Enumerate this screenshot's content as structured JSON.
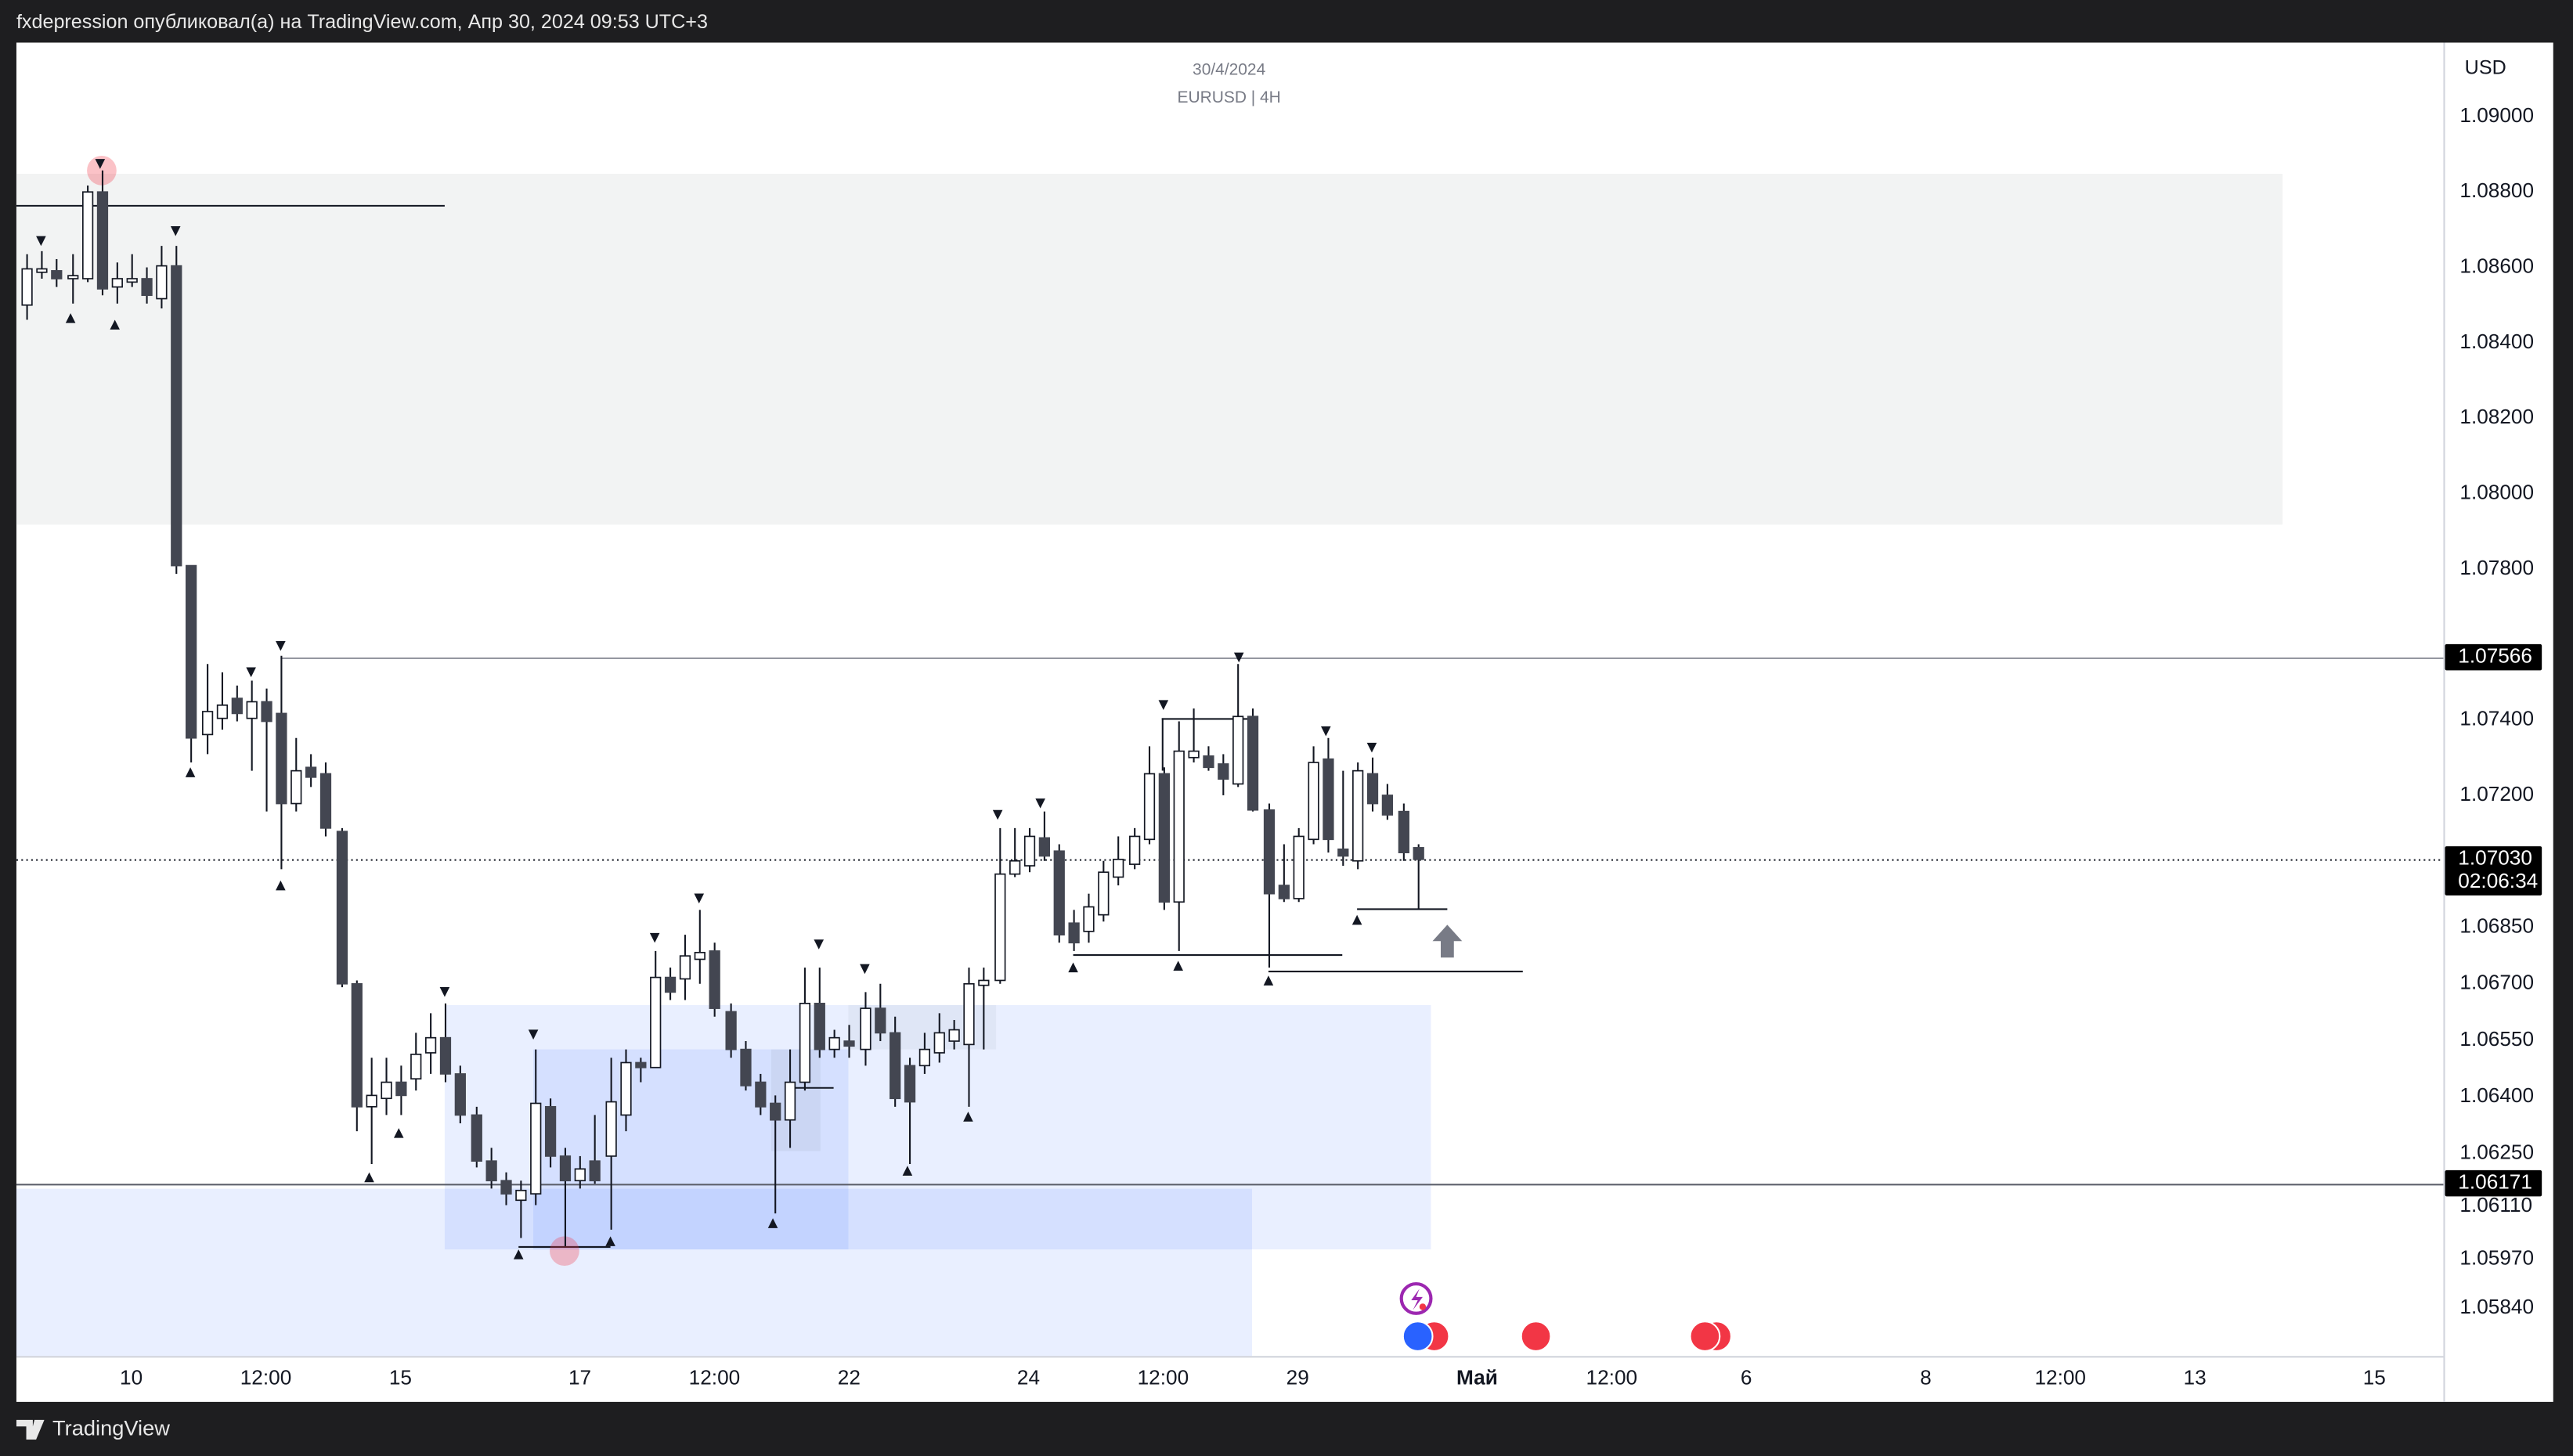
{
  "header": {
    "text": "fxdepression опубликовал(а) на TradingView.com, Апр 30, 2024 09:53 UTC+3"
  },
  "footer": {
    "brand": "TradingView"
  },
  "chart_data": {
    "type": "candlestick",
    "subtitle": "30/4/2024",
    "title": "EURUSD | 4H",
    "currency": "USD",
    "ylim": [
      1.05713,
      1.09196
    ],
    "yticks": [
      {
        "value": 1.09,
        "label": "1.09000"
      },
      {
        "value": 1.088,
        "label": "1.08800"
      },
      {
        "value": 1.086,
        "label": "1.08600"
      },
      {
        "value": 1.084,
        "label": "1.08400"
      },
      {
        "value": 1.082,
        "label": "1.08200"
      },
      {
        "value": 1.08,
        "label": "1.08000"
      },
      {
        "value": 1.078,
        "label": "1.07800"
      },
      {
        "value": 1.074,
        "label": "1.07400"
      },
      {
        "value": 1.072,
        "label": "1.07200"
      },
      {
        "value": 1.0685,
        "label": "1.06850"
      },
      {
        "value": 1.067,
        "label": "1.06700"
      },
      {
        "value": 1.0655,
        "label": "1.06550"
      },
      {
        "value": 1.064,
        "label": "1.06400"
      },
      {
        "value": 1.0625,
        "label": "1.06250"
      },
      {
        "value": 1.0611,
        "label": "1.06110"
      },
      {
        "value": 1.0597,
        "label": "1.05970"
      },
      {
        "value": 1.0584,
        "label": "1.05840"
      }
    ],
    "grid": false,
    "price_lines": [
      1.07566,
      {
        "value": 1.0703,
        "label": "1.07030"
      },
      1.06171
    ],
    "countdown": "02:06:34",
    "categories": [
      null,
      null,
      null,
      null,
      null,
      null,
      null,
      "10",
      null,
      null,
      null,
      null,
      null,
      null,
      null,
      null,
      "12:00",
      null,
      null,
      null,
      null,
      null,
      null,
      null,
      null,
      "15",
      null,
      null,
      null,
      null,
      null,
      null,
      null,
      null,
      null,
      null,
      null,
      "17",
      null,
      null,
      null,
      null,
      null,
      null,
      null,
      null,
      "12:00",
      null,
      null,
      null,
      null,
      null,
      null,
      null,
      null,
      "22",
      null,
      null,
      null,
      null,
      null,
      null,
      null,
      null,
      null,
      null,
      null,
      "24",
      null,
      null,
      null,
      null,
      null,
      null,
      null,
      null,
      "12:00",
      null,
      null,
      null,
      null,
      null,
      null,
      null,
      null,
      "29",
      null,
      null,
      null,
      null,
      null,
      null,
      null,
      null,
      null,
      null,
      null,
      "Май",
      null,
      null,
      null,
      null,
      null,
      null,
      null,
      null,
      "12:00",
      null,
      null,
      null,
      null,
      null,
      null,
      null,
      null,
      "6",
      null,
      null,
      null,
      null,
      null,
      null,
      null,
      null,
      null,
      null,
      null,
      "8",
      null,
      null,
      null,
      null,
      null,
      null,
      null,
      null,
      "12:00",
      null,
      null,
      null,
      null,
      null,
      null,
      null,
      null,
      "13",
      null,
      null,
      null,
      null,
      null,
      null,
      null,
      null,
      null,
      null,
      null,
      "15",
      null,
      null,
      null,
      null
    ],
    "values": [
      [
        1.085,
        1.08635,
        1.08461,
        1.08596
      ],
      [
        1.08587,
        1.08643,
        1.0857,
        1.08596
      ],
      [
        1.08591,
        1.08622,
        1.08548,
        1.0857
      ],
      [
        1.0857,
        1.08635,
        1.08504,
        1.08578
      ],
      [
        1.0857,
        1.08817,
        1.08561,
        1.088
      ],
      [
        1.088,
        1.08857,
        1.08526,
        1.08543
      ],
      [
        1.08548,
        1.08613,
        1.08504,
        1.0857
      ],
      [
        1.08561,
        1.08635,
        1.08548,
        1.0857
      ],
      [
        1.0857,
        1.086,
        1.08504,
        1.08526
      ],
      [
        1.08517,
        1.08657,
        1.08491,
        1.08604
      ],
      [
        1.08604,
        1.08657,
        1.07787,
        1.07809
      ],
      [
        1.07809,
        1.07809,
        1.07287,
        1.07352
      ],
      [
        1.07361,
        1.07548,
        1.07309,
        1.07422
      ],
      [
        1.07404,
        1.07526,
        1.07374,
        1.07439
      ],
      [
        1.07457,
        1.07491,
        1.07396,
        1.07417
      ],
      [
        1.07404,
        1.07504,
        1.07265,
        1.07448
      ],
      [
        1.07448,
        1.07483,
        1.07157,
        1.07396
      ],
      [
        1.07417,
        1.0757,
        1.07004,
        1.07178
      ],
      [
        1.07178,
        1.07352,
        1.07157,
        1.07265
      ],
      [
        1.07274,
        1.07309,
        1.07222,
        1.07248
      ],
      [
        1.07257,
        1.07287,
        1.07091,
        1.07113
      ],
      [
        1.07104,
        1.07113,
        1.06691,
        1.067
      ],
      [
        1.067,
        1.06709,
        1.06309,
        1.06374
      ],
      [
        1.06374,
        1.06504,
        1.06222,
        1.06404
      ],
      [
        1.06396,
        1.06504,
        1.06352,
        1.06439
      ],
      [
        1.06439,
        1.06483,
        1.06352,
        1.06404
      ],
      [
        1.06448,
        1.0657,
        1.06417,
        1.06513
      ],
      [
        1.06517,
        1.06622,
        1.06461,
        1.06557
      ],
      [
        1.06557,
        1.06648,
        1.06439,
        1.06461
      ],
      [
        1.06461,
        1.06483,
        1.0633,
        1.06352
      ],
      [
        1.06352,
        1.06374,
        1.06213,
        1.0623
      ],
      [
        1.0623,
        1.06265,
        1.06157,
        1.06178
      ],
      [
        1.06178,
        1.062,
        1.06113,
        1.06143
      ],
      [
        1.06126,
        1.06178,
        1.06026,
        1.06152
      ],
      [
        1.06143,
        1.06526,
        1.06113,
        1.06383
      ],
      [
        1.06374,
        1.06396,
        1.06213,
        1.06243
      ],
      [
        1.06243,
        1.06265,
        1.06004,
        1.06178
      ],
      [
        1.06178,
        1.06243,
        1.06157,
        1.06209
      ],
      [
        1.0623,
        1.06352,
        1.0617,
        1.06178
      ],
      [
        1.06243,
        1.06504,
        1.06048,
        1.06387
      ],
      [
        1.06352,
        1.06526,
        1.06309,
        1.06491
      ],
      [
        1.06491,
        1.06504,
        1.06439,
        1.06478
      ],
      [
        1.06478,
        1.06787,
        1.06478,
        1.06717
      ],
      [
        1.06717,
        1.06743,
        1.06657,
        1.06678
      ],
      [
        1.06713,
        1.0683,
        1.06657,
        1.06774
      ],
      [
        1.06765,
        1.06896,
        1.067,
        1.06783
      ],
      [
        1.06787,
        1.06809,
        1.06613,
        1.06635
      ],
      [
        1.06626,
        1.06648,
        1.06504,
        1.06526
      ],
      [
        1.06526,
        1.06548,
        1.06417,
        1.0643
      ],
      [
        1.06439,
        1.06461,
        1.06352,
        1.06374
      ],
      [
        1.06383,
        1.06404,
        1.06091,
        1.06339
      ],
      [
        1.06339,
        1.06526,
        1.06265,
        1.06439
      ],
      [
        1.06439,
        1.06743,
        1.06417,
        1.06648
      ],
      [
        1.06648,
        1.06743,
        1.06504,
        1.06526
      ],
      [
        1.06526,
        1.06578,
        1.06504,
        1.06557
      ],
      [
        1.06548,
        1.06591,
        1.06504,
        1.06535
      ],
      [
        1.06526,
        1.06678,
        1.06483,
        1.06635
      ],
      [
        1.06635,
        1.067,
        1.06548,
        1.0657
      ],
      [
        1.0657,
        1.06613,
        1.06374,
        1.06396
      ],
      [
        1.06483,
        1.06504,
        1.06222,
        1.06387
      ],
      [
        1.06483,
        1.0657,
        1.06461,
        1.06526
      ],
      [
        1.06517,
        1.06622,
        1.06491,
        1.0657
      ],
      [
        1.06548,
        1.06604,
        1.06526,
        1.06578
      ],
      [
        1.06539,
        1.06743,
        1.06374,
        1.067
      ],
      [
        1.06696,
        1.06743,
        1.06526,
        1.06709
      ],
      [
        1.06709,
        1.07113,
        1.067,
        1.06991
      ],
      [
        1.06991,
        1.07113,
        1.06983,
        1.07026
      ],
      [
        1.07013,
        1.07113,
        1.06996,
        1.07091
      ],
      [
        1.07087,
        1.07157,
        1.07026,
        1.07039
      ],
      [
        1.07052,
        1.0707,
        1.06809,
        1.0683
      ],
      [
        1.06861,
        1.06896,
        1.06787,
        1.06809
      ],
      [
        1.06839,
        1.06939,
        1.06809,
        1.06904
      ],
      [
        1.06883,
        1.07026,
        1.06865,
        1.06996
      ],
      [
        1.06983,
        1.07091,
        1.06961,
        1.0703
      ],
      [
        1.07017,
        1.07113,
        1.07004,
        1.07091
      ],
      [
        1.07083,
        1.0733,
        1.0707,
        1.07257
      ],
      [
        1.07257,
        1.07274,
        1.06896,
        1.06917
      ],
      [
        1.06917,
        1.07396,
        1.06787,
        1.07317
      ],
      [
        1.073,
        1.0743,
        1.07287,
        1.07317
      ],
      [
        1.07304,
        1.0733,
        1.07265,
        1.07274
      ],
      [
        1.07283,
        1.07309,
        1.072,
        1.07243
      ],
      [
        1.0723,
        1.07548,
        1.07222,
        1.07409
      ],
      [
        1.07409,
        1.0743,
        1.07157,
        1.07161
      ],
      [
        1.07161,
        1.07178,
        1.06743,
        1.06939
      ],
      [
        1.06961,
        1.0707,
        1.06917,
        1.06926
      ],
      [
        1.06926,
        1.07113,
        1.06917,
        1.07091
      ],
      [
        1.07083,
        1.0733,
        1.0707,
        1.07287
      ],
      [
        1.07296,
        1.07352,
        1.07048,
        1.07083
      ],
      [
        1.07057,
        1.07265,
        1.07013,
        1.07039
      ],
      [
        1.07026,
        1.07287,
        1.07004,
        1.07265
      ],
      [
        1.07257,
        1.073,
        1.07157,
        1.07178
      ],
      [
        1.072,
        1.0723,
        1.07135,
        1.07148
      ],
      [
        1.07157,
        1.07178,
        1.07026,
        1.07048
      ],
      [
        1.07061,
        1.0707,
        1.06896,
        1.0703
      ],
      null,
      null,
      null,
      null,
      null,
      null,
      null,
      null,
      null,
      null,
      null,
      null,
      null,
      null,
      null,
      null,
      null,
      null,
      null,
      null,
      null,
      null,
      null,
      null,
      null,
      null,
      null,
      null,
      null,
      null,
      null,
      null,
      null,
      null,
      null,
      null,
      null,
      null,
      null,
      null,
      null,
      null,
      null,
      null,
      null,
      null,
      null,
      null,
      null,
      null,
      null,
      null,
      null,
      null,
      null,
      null,
      null,
      null,
      null,
      null,
      null,
      null,
      null,
      null,
      null,
      null,
      null,
      null
    ]
  }
}
